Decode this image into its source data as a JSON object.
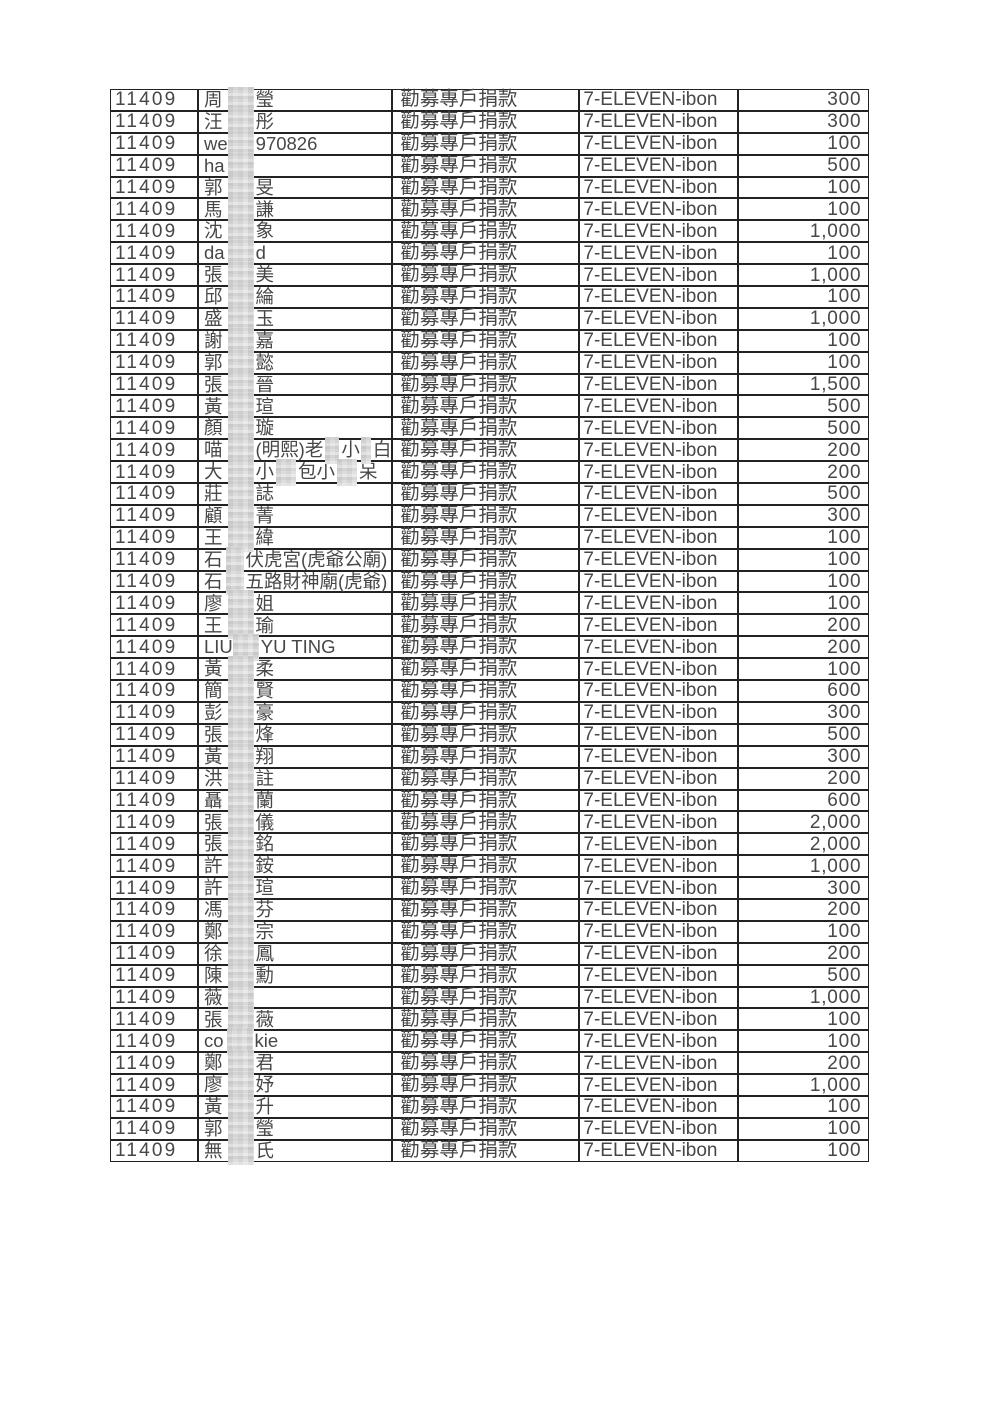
{
  "page": {
    "background": "#ffffff",
    "text_color": "#474747",
    "border_color": "#222222",
    "redaction_color": "#d9d9d9"
  },
  "table": {
    "period": "11409",
    "donation_type": "勸募專戶捐款",
    "channel": "7-ELEVEN-ibon",
    "rows": [
      {
        "donor": [
          {
            "t": "周"
          },
          {
            "r": 26,
            "ml": 5
          },
          {
            "t": "瑩"
          }
        ],
        "amount": "300"
      },
      {
        "donor": [
          {
            "t": "汪"
          },
          {
            "r": 26,
            "ml": 5
          },
          {
            "t": "彤"
          }
        ],
        "amount": "300"
      },
      {
        "donor": [
          {
            "t": "we"
          },
          {
            "r": 26,
            "ml": 0
          },
          {
            "t": "970826"
          }
        ],
        "amount": "100"
      },
      {
        "donor": [
          {
            "t": "ha"
          },
          {
            "r": 26,
            "ml": 3
          }
        ],
        "amount": "500"
      },
      {
        "donor": [
          {
            "t": "郭"
          },
          {
            "r": 26,
            "ml": 5
          },
          {
            "t": "旻"
          }
        ],
        "amount": "100"
      },
      {
        "donor": [
          {
            "t": "馬"
          },
          {
            "r": 26,
            "ml": 5
          },
          {
            "t": "謙"
          }
        ],
        "amount": "100"
      },
      {
        "donor": [
          {
            "t": "沈"
          },
          {
            "r": 26,
            "ml": 5
          },
          {
            "t": "象"
          }
        ],
        "amount": "1,000"
      },
      {
        "donor": [
          {
            "t": "da"
          },
          {
            "r": 26,
            "ml": 3
          },
          {
            "t": "d"
          }
        ],
        "amount": "100"
      },
      {
        "donor": [
          {
            "t": "張"
          },
          {
            "r": 26,
            "ml": 5
          },
          {
            "t": "美"
          }
        ],
        "amount": "1,000"
      },
      {
        "donor": [
          {
            "t": "邱"
          },
          {
            "r": 26,
            "ml": 5
          },
          {
            "t": "綸"
          }
        ],
        "amount": "100"
      },
      {
        "donor": [
          {
            "t": "盛"
          },
          {
            "r": 26,
            "ml": 5
          },
          {
            "t": "玉"
          }
        ],
        "amount": "1,000"
      },
      {
        "donor": [
          {
            "t": "謝"
          },
          {
            "r": 26,
            "ml": 5
          },
          {
            "t": "嘉"
          }
        ],
        "amount": "100"
      },
      {
        "donor": [
          {
            "t": "郭"
          },
          {
            "r": 26,
            "ml": 5
          },
          {
            "t": "懿"
          }
        ],
        "amount": "100"
      },
      {
        "donor": [
          {
            "t": "張"
          },
          {
            "r": 26,
            "ml": 5
          },
          {
            "t": "晉"
          }
        ],
        "amount": "1,500"
      },
      {
        "donor": [
          {
            "t": "黃"
          },
          {
            "r": 26,
            "ml": 5
          },
          {
            "t": "瑄"
          }
        ],
        "amount": "500"
      },
      {
        "donor": [
          {
            "t": "顏"
          },
          {
            "r": 26,
            "ml": 5
          },
          {
            "t": "璇"
          }
        ],
        "amount": "500"
      },
      {
        "donor": [
          {
            "t": "喵"
          },
          {
            "r": 26,
            "ml": 5
          },
          {
            "t": "(明熙)老"
          },
          {
            "r": 14,
            "ml": 2
          },
          {
            "t": "小"
          },
          {
            "r": 10,
            "ml": 1
          },
          {
            "t": "白"
          }
        ],
        "amount": "200"
      },
      {
        "donor": [
          {
            "t": "大"
          },
          {
            "r": 26,
            "ml": 5
          },
          {
            "t": "小"
          },
          {
            "r": 20,
            "ml": 2
          },
          {
            "t": "包小"
          },
          {
            "r": 20,
            "ml": 2
          },
          {
            "t": "呆"
          }
        ],
        "amount": "200"
      },
      {
        "donor": [
          {
            "t": "莊"
          },
          {
            "r": 26,
            "ml": 5
          },
          {
            "t": "誌"
          }
        ],
        "amount": "500"
      },
      {
        "donor": [
          {
            "t": "顧"
          },
          {
            "r": 26,
            "ml": 5
          },
          {
            "t": "菁"
          }
        ],
        "amount": "300"
      },
      {
        "donor": [
          {
            "t": "王"
          },
          {
            "r": 26,
            "ml": 5
          },
          {
            "t": "緯"
          }
        ],
        "amount": "100"
      },
      {
        "donor": [
          {
            "t": "石"
          },
          {
            "r": 18,
            "ml": 3
          },
          {
            "t": "伏虎宮(虎爺公廟)"
          }
        ],
        "amount": "100"
      },
      {
        "donor": [
          {
            "t": "石"
          },
          {
            "r": 18,
            "ml": 3
          },
          {
            "t": "五路財神廟(虎爺)"
          }
        ],
        "amount": "100"
      },
      {
        "donor": [
          {
            "t": "廖"
          },
          {
            "r": 26,
            "ml": 5
          },
          {
            "t": "姐"
          }
        ],
        "amount": "100"
      },
      {
        "donor": [
          {
            "t": "王"
          },
          {
            "r": 26,
            "ml": 5
          },
          {
            "t": "瑜"
          }
        ],
        "amount": "200"
      },
      {
        "donor": [
          {
            "t": "LIU"
          },
          {
            "r": 26,
            "ml": 0
          },
          {
            "t": "YU TING"
          }
        ],
        "amount": "200"
      },
      {
        "donor": [
          {
            "t": "黃"
          },
          {
            "r": 26,
            "ml": 5
          },
          {
            "t": "柔"
          }
        ],
        "amount": "100"
      },
      {
        "donor": [
          {
            "t": "簡"
          },
          {
            "r": 26,
            "ml": 5
          },
          {
            "t": "賢"
          }
        ],
        "amount": "600"
      },
      {
        "donor": [
          {
            "t": "彭"
          },
          {
            "r": 26,
            "ml": 5
          },
          {
            "t": "豪"
          }
        ],
        "amount": "300"
      },
      {
        "donor": [
          {
            "t": "張"
          },
          {
            "r": 26,
            "ml": 5
          },
          {
            "t": "烽"
          }
        ],
        "amount": "500"
      },
      {
        "donor": [
          {
            "t": "黃"
          },
          {
            "r": 26,
            "ml": 5
          },
          {
            "t": "翔"
          }
        ],
        "amount": "300"
      },
      {
        "donor": [
          {
            "t": "洪"
          },
          {
            "r": 26,
            "ml": 5
          },
          {
            "t": "註"
          }
        ],
        "amount": "200"
      },
      {
        "donor": [
          {
            "t": "聶"
          },
          {
            "r": 26,
            "ml": 5
          },
          {
            "t": "蘭"
          }
        ],
        "amount": "600"
      },
      {
        "donor": [
          {
            "t": "張"
          },
          {
            "r": 26,
            "ml": 5
          },
          {
            "t": "儀"
          }
        ],
        "amount": "2,000"
      },
      {
        "donor": [
          {
            "t": "張"
          },
          {
            "r": 26,
            "ml": 5
          },
          {
            "t": "銘"
          }
        ],
        "amount": "2,000"
      },
      {
        "donor": [
          {
            "t": "許"
          },
          {
            "r": 26,
            "ml": 5
          },
          {
            "t": "銨"
          }
        ],
        "amount": "1,000"
      },
      {
        "donor": [
          {
            "t": "許"
          },
          {
            "r": 26,
            "ml": 5
          },
          {
            "t": "瑄"
          }
        ],
        "amount": "300"
      },
      {
        "donor": [
          {
            "t": "馮"
          },
          {
            "r": 26,
            "ml": 5
          },
          {
            "t": "芬"
          }
        ],
        "amount": "200"
      },
      {
        "donor": [
          {
            "t": "鄭"
          },
          {
            "r": 26,
            "ml": 5
          },
          {
            "t": "宗"
          }
        ],
        "amount": "100"
      },
      {
        "donor": [
          {
            "t": "徐"
          },
          {
            "r": 26,
            "ml": 5
          },
          {
            "t": "鳳"
          }
        ],
        "amount": "200"
      },
      {
        "donor": [
          {
            "t": "陳"
          },
          {
            "r": 26,
            "ml": 5
          },
          {
            "t": "勳"
          }
        ],
        "amount": "500"
      },
      {
        "donor": [
          {
            "t": "薇"
          },
          {
            "r": 26,
            "ml": 5
          }
        ],
        "amount": "1,000"
      },
      {
        "donor": [
          {
            "t": "張"
          },
          {
            "r": 26,
            "ml": 5
          },
          {
            "t": "薇"
          }
        ],
        "amount": "100"
      },
      {
        "donor": [
          {
            "t": "co"
          },
          {
            "r": 26,
            "ml": 3
          },
          {
            "t": "kie"
          }
        ],
        "amount": "100"
      },
      {
        "donor": [
          {
            "t": "鄭"
          },
          {
            "r": 26,
            "ml": 5
          },
          {
            "t": "君"
          }
        ],
        "amount": "200"
      },
      {
        "donor": [
          {
            "t": "廖"
          },
          {
            "r": 26,
            "ml": 5
          },
          {
            "t": "妤"
          }
        ],
        "amount": "1,000"
      },
      {
        "donor": [
          {
            "t": "黃"
          },
          {
            "r": 26,
            "ml": 5
          },
          {
            "t": "升"
          }
        ],
        "amount": "100"
      },
      {
        "donor": [
          {
            "t": "郭"
          },
          {
            "r": 26,
            "ml": 5
          },
          {
            "t": "瑩"
          }
        ],
        "amount": "100"
      },
      {
        "donor": [
          {
            "t": "無"
          },
          {
            "r": 26,
            "ml": 5
          },
          {
            "t": "氏"
          }
        ],
        "amount": "100"
      }
    ]
  }
}
